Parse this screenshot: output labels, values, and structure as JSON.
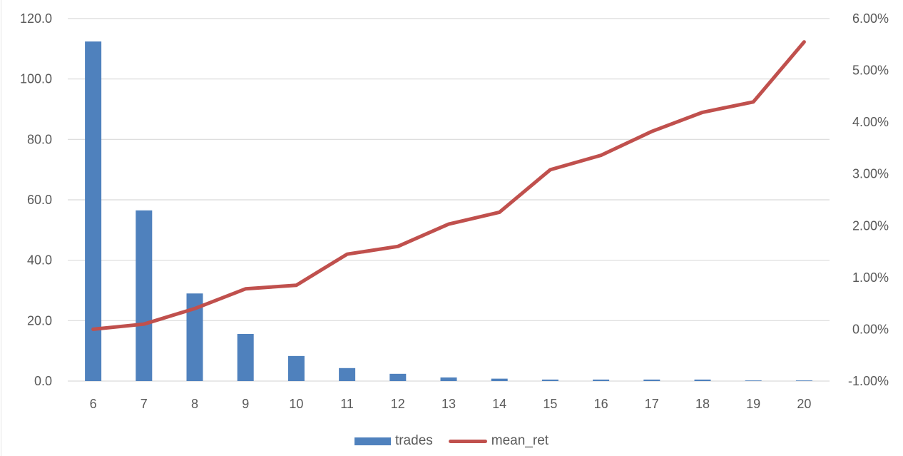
{
  "chart_data": {
    "type": "bar+line",
    "title": "",
    "xlabel": "",
    "ylabel": "",
    "categories": [
      "6",
      "7",
      "8",
      "9",
      "10",
      "11",
      "12",
      "13",
      "14",
      "15",
      "16",
      "17",
      "18",
      "19",
      "20"
    ],
    "series": [
      {
        "name": "trades",
        "type": "bar",
        "axis": "left",
        "color": "#4f81bd",
        "values": [
          112.4,
          56.5,
          29.0,
          15.6,
          8.3,
          4.3,
          2.4,
          1.2,
          0.8,
          0.5,
          0.5,
          0.5,
          0.5,
          0.2,
          0.2
        ]
      },
      {
        "name": "mean_ret",
        "type": "line",
        "axis": "right",
        "color": "#c0504d",
        "values": [
          0.0,
          0.001,
          0.004,
          0.0078,
          0.0085,
          0.0145,
          0.016,
          0.0203,
          0.0226,
          0.0308,
          0.0336,
          0.0382,
          0.0419,
          0.0439,
          0.0555
        ]
      }
    ],
    "y_left": {
      "ylim": [
        0,
        120
      ],
      "ticks": [
        "0.0",
        "20.0",
        "40.0",
        "60.0",
        "80.0",
        "100.0",
        "120.0"
      ]
    },
    "y_right": {
      "ylim": [
        -0.01,
        0.06
      ],
      "ticks": [
        "-1.00%",
        "0.00%",
        "1.00%",
        "2.00%",
        "3.00%",
        "4.00%",
        "5.00%",
        "6.00%"
      ]
    },
    "grid": true,
    "legend_position": "bottom"
  },
  "legend": {
    "trades_label": "trades",
    "mean_ret_label": "mean_ret"
  }
}
